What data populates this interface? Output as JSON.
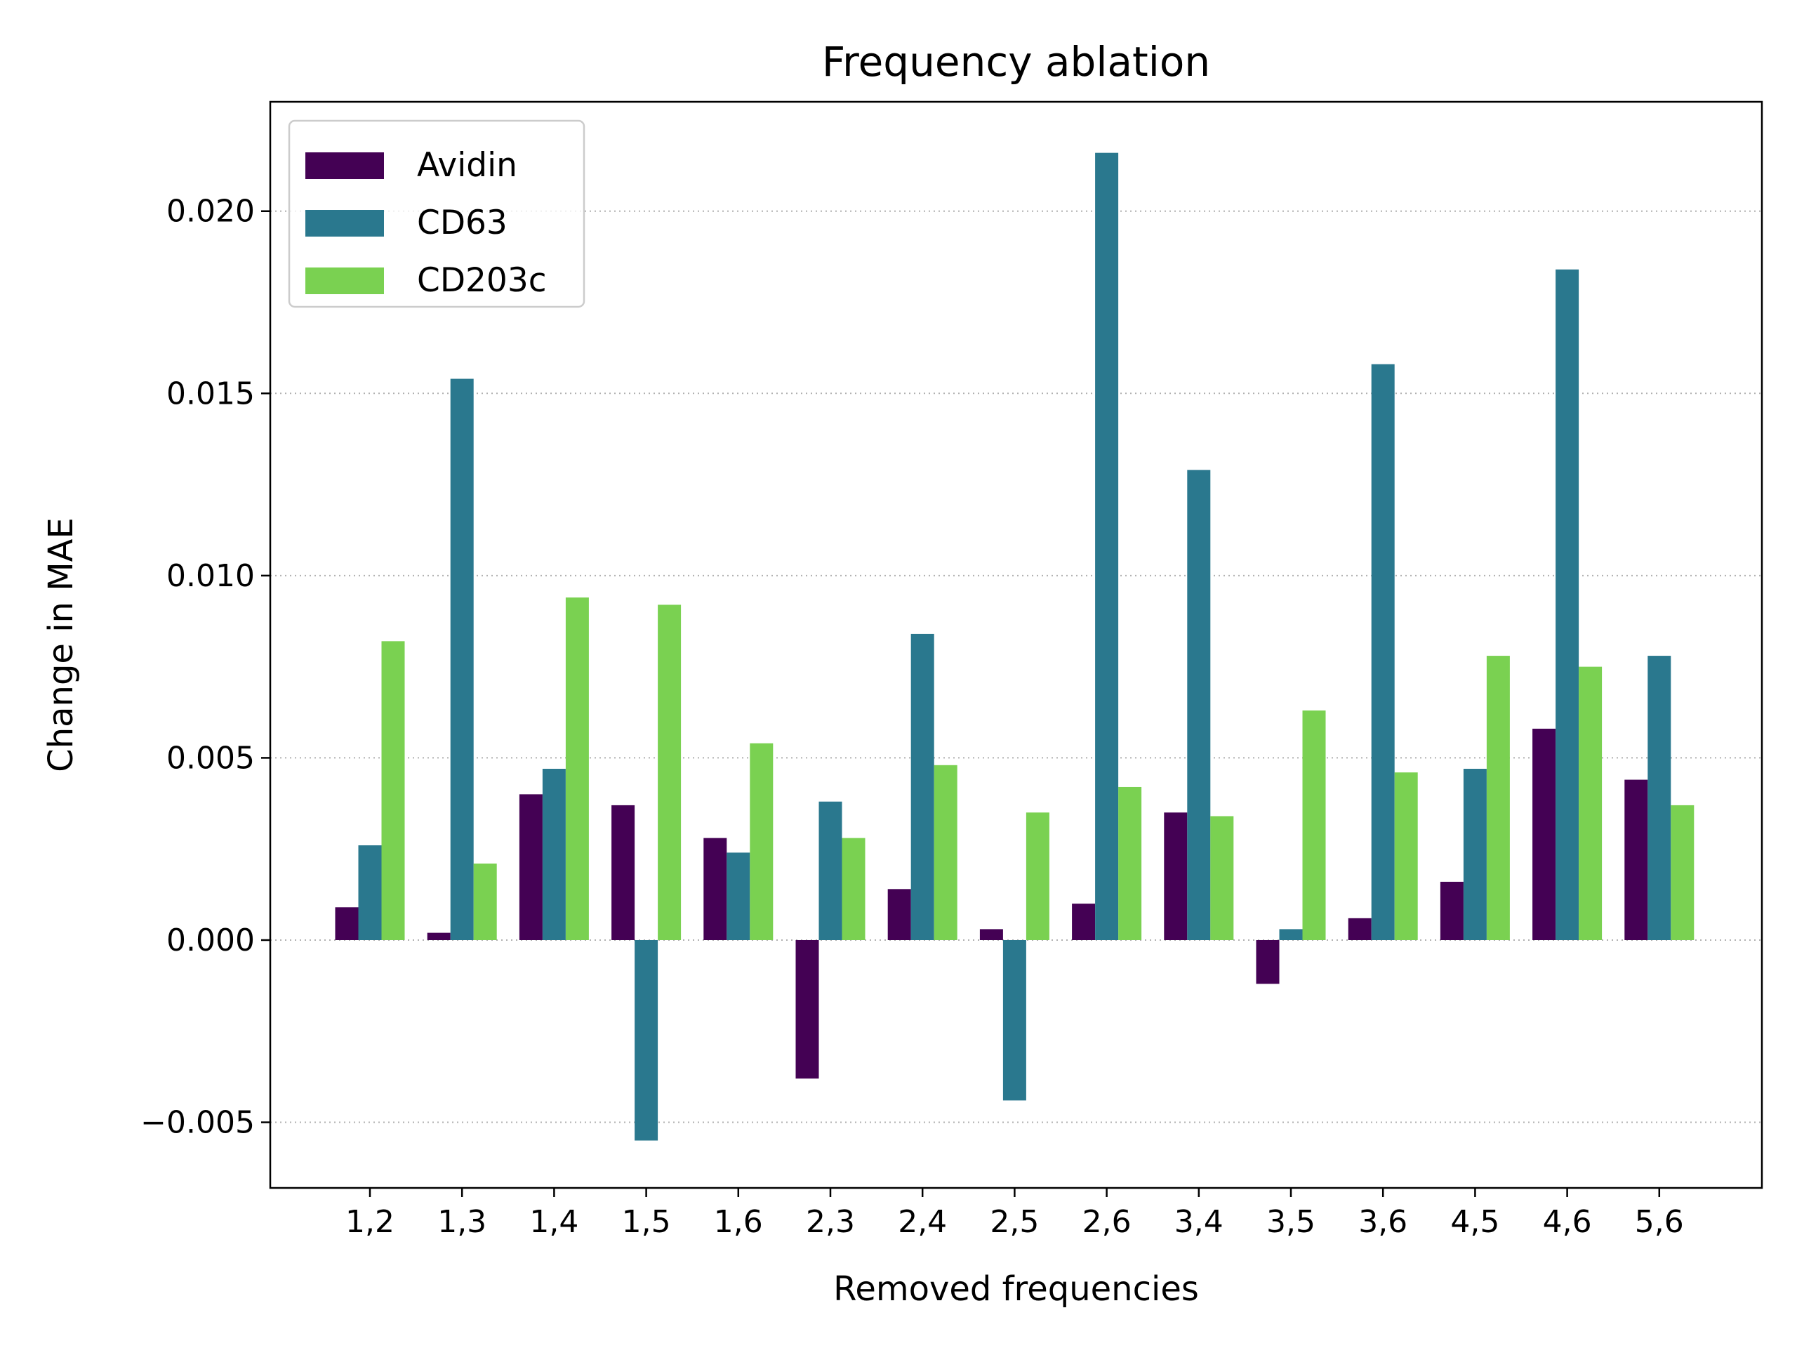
{
  "chart_data": {
    "type": "bar",
    "title": "Frequency ablation",
    "xlabel": "Removed frequencies",
    "ylabel": "Change in MAE",
    "categories": [
      "1,2",
      "1,3",
      "1,4",
      "1,5",
      "1,6",
      "2,3",
      "2,4",
      "2,5",
      "2,6",
      "3,4",
      "3,5",
      "3,6",
      "4,5",
      "4,6",
      "5,6"
    ],
    "series": [
      {
        "name": "Avidin",
        "color": "#440154",
        "values": [
          0.0009,
          0.0002,
          0.004,
          0.0037,
          0.0028,
          -0.0038,
          0.0014,
          0.0003,
          0.001,
          0.0035,
          -0.0012,
          0.0006,
          0.0016,
          0.0058,
          0.0044
        ]
      },
      {
        "name": "CD63",
        "color": "#2a788e",
        "values": [
          0.0026,
          0.0154,
          0.0047,
          -0.0055,
          0.0024,
          0.0038,
          0.0084,
          -0.0044,
          0.0216,
          0.0129,
          0.0003,
          0.0158,
          0.0047,
          0.0184,
          0.0078
        ]
      },
      {
        "name": "CD203c",
        "color": "#7ad151",
        "values": [
          0.0082,
          0.0021,
          0.0094,
          0.0092,
          0.0054,
          0.0028,
          0.0048,
          0.0035,
          0.0042,
          0.0034,
          0.0063,
          0.0046,
          0.0078,
          0.0075,
          0.0037
        ]
      }
    ],
    "ylim": [
      -0.0068,
      0.023
    ],
    "yticks": [
      -0.005,
      0.0,
      0.005,
      0.01,
      0.015,
      0.02
    ],
    "ytick_labels": [
      "−0.005",
      "0.000",
      "0.005",
      "0.010",
      "0.015",
      "0.020"
    ],
    "grid": "y-dotted",
    "legend_position": "top-left"
  }
}
